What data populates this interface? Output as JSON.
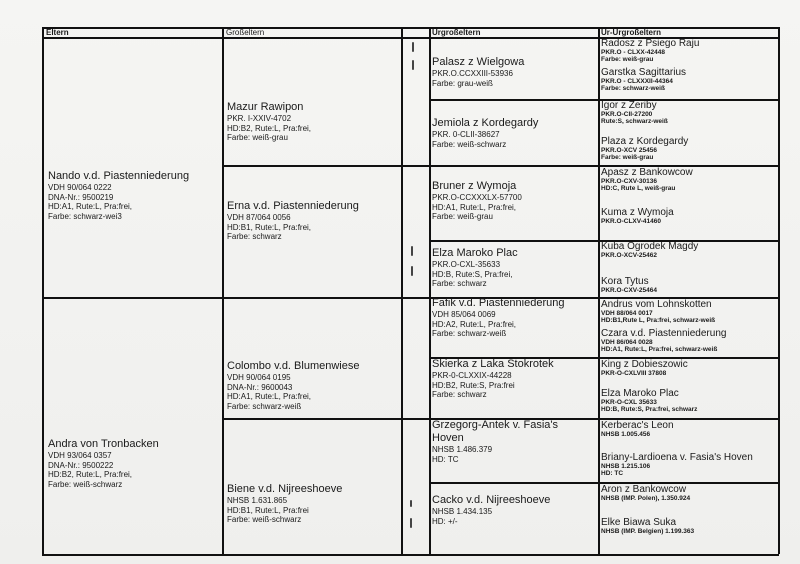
{
  "headers": {
    "parents": "Eltern",
    "grandparents": "Großeltern",
    "great_grandparents": "Urgroßeltern",
    "great_great_grandparents": "Ur-Urgroßeltern"
  },
  "parents": [
    {
      "name": "Nando v.d. Piastenniederung",
      "lines": [
        "VDH 90/064 0222",
        "DNA-Nr.: 9500219",
        "HD:A1, Rute:L, Pra:frei,",
        "Farbe: schwarz-wei3"
      ]
    },
    {
      "name": "Andra von Tronbacken",
      "lines": [
        "VDH 93/064 0357",
        "DNA-Nr.: 9500222",
        "HD:B2, Rute:L, Pra:frei,",
        "Farbe: weiß-schwarz"
      ]
    }
  ],
  "grandparents": [
    {
      "name": "Mazur Rawipon",
      "lines": [
        "PKR. I-XXIV-4702",
        "HD:B2, Rute:L, Pra:frei,",
        "Farbe: weiß-grau"
      ]
    },
    {
      "name": "Erna v.d. Piastenniederung",
      "lines": [
        "VDH 87/064 0056",
        "HD:B1, Rute:L, Pra:frei,",
        "Farbe: schwarz"
      ]
    },
    {
      "name": "Colombo v.d. Blumenwiese",
      "lines": [
        "VDH 90/064 0195",
        "DNA-Nr.: 9600043",
        "HD:A1, Rute:L, Pra:frei,",
        "Farbe: schwarz-weiß"
      ]
    },
    {
      "name": "Biene v.d. Nijreeshoeve",
      "lines": [
        "NHSB 1.631.865",
        "HD:B1, Rute:L, Pra:frei",
        "Farbe: weiß-schwarz"
      ]
    }
  ],
  "great_grandparents": [
    {
      "name": "Palasz z Wielgowa",
      "lines": [
        "PKR.O.CCXXIII-53936",
        "Farbe: grau-weiß"
      ]
    },
    {
      "name": "Jemiola z Kordegardy",
      "lines": [
        "PKR. 0-CLII-38627",
        "Farbe: weiß-schwarz"
      ]
    },
    {
      "name": "Bruner z Wymoja",
      "lines": [
        "PKR.O-CCXXXLX-57700",
        "HD:A1, Rute:L, Pra:frei,",
        "Farbe: weiß-grau"
      ]
    },
    {
      "name": "Elza Maroko Plac",
      "lines": [
        "PKR.O-CXL-35633",
        "HD:B, Rute:S, Pra:frei,",
        "Farbe: schwarz"
      ]
    },
    {
      "name": "Fafik v.d. Piastenniederung",
      "lines": [
        "VDH 85/064 0069",
        "HD:A2, Rute:L, Pra:frei,",
        "Farbe: schwarz-weiß"
      ]
    },
    {
      "name": "Skierka z Laka Stokrotek",
      "lines": [
        "PKR-0-CLXXIX-44228",
        "HD:B2, Rute:S, Pra:frei",
        "Farbe: schwarz"
      ]
    },
    {
      "name": "Grzegorg-Antek v. Fasia's Hoven",
      "lines": [
        "NHSB 1.486.379",
        "HD: TC"
      ]
    },
    {
      "name": "Cacko v.d. Nijreeshoeve",
      "lines": [
        "NHSB 1.434.135",
        "HD: +/-"
      ]
    }
  ],
  "great_great_grandparents": [
    {
      "name": "Radosz z Psiego Raju",
      "lines": [
        "PKR.O - CLXX-42448",
        "Farbe: weiß-grau"
      ]
    },
    {
      "name": "Garstka Sagittarius",
      "lines": [
        "PKR.O - CLXXXII-44364",
        "Farbe: schwarz-weiß"
      ]
    },
    {
      "name": "Igor z Zeriby",
      "lines": [
        "PKR.O-CII-27200",
        "Rute:S, schwarz-weiß"
      ]
    },
    {
      "name": "Plaza z Kordegardy",
      "lines": [
        "PKR.O-XCV 25456",
        "Farbe: weiß-grau"
      ]
    },
    {
      "name": "Apasz z Bankowcow",
      "lines": [
        "PKR.O-CXV-30136",
        "HD:C, Rute L, weiß-grau"
      ]
    },
    {
      "name": "Kuma z Wymoja",
      "lines": [
        "PKR.O-CLXV-41460"
      ]
    },
    {
      "name": "Kuba Ogrodek Magdy",
      "lines": [
        "PKR.O-XCV-25462"
      ]
    },
    {
      "name": "Kora Tytus",
      "lines": [
        "PKR.O-CXV-25464"
      ]
    },
    {
      "name": "Andrus vom Lohnskotten",
      "lines": [
        "VDH 88/064 0017",
        "HD:B1,Rute L, Pra:frei, schwarz-weiß"
      ]
    },
    {
      "name": "Czara v.d. Piastenniederung",
      "lines": [
        "VDH 86/064 0028",
        "HD:A1, Rute:L, Pra:frei, schwarz-weiß"
      ]
    },
    {
      "name": "King z Dobieszowic",
      "lines": [
        "PKR-O-CXLVIII 37808"
      ]
    },
    {
      "name": "Elza Maroko Plac",
      "lines": [
        "PKR-O-CXL 35633",
        "HD:B, Rute:S, Pra:frei, schwarz"
      ]
    },
    {
      "name": "Kerberac's Leon",
      "lines": [
        "NHSB 1.005.456"
      ]
    },
    {
      "name": "Briany-Lardioena v. Fasia's Hoven",
      "lines": [
        "NHSB 1.215.106",
        "HD: TC"
      ]
    },
    {
      "name": "Aron z Bankowcow",
      "lines": [
        "NHSB (IMP. Polen), 1.350.924"
      ]
    },
    {
      "name": "Elke Biawa Suka",
      "lines": [
        "NHSB (IMP. Belgien) 1.199.363"
      ]
    }
  ]
}
